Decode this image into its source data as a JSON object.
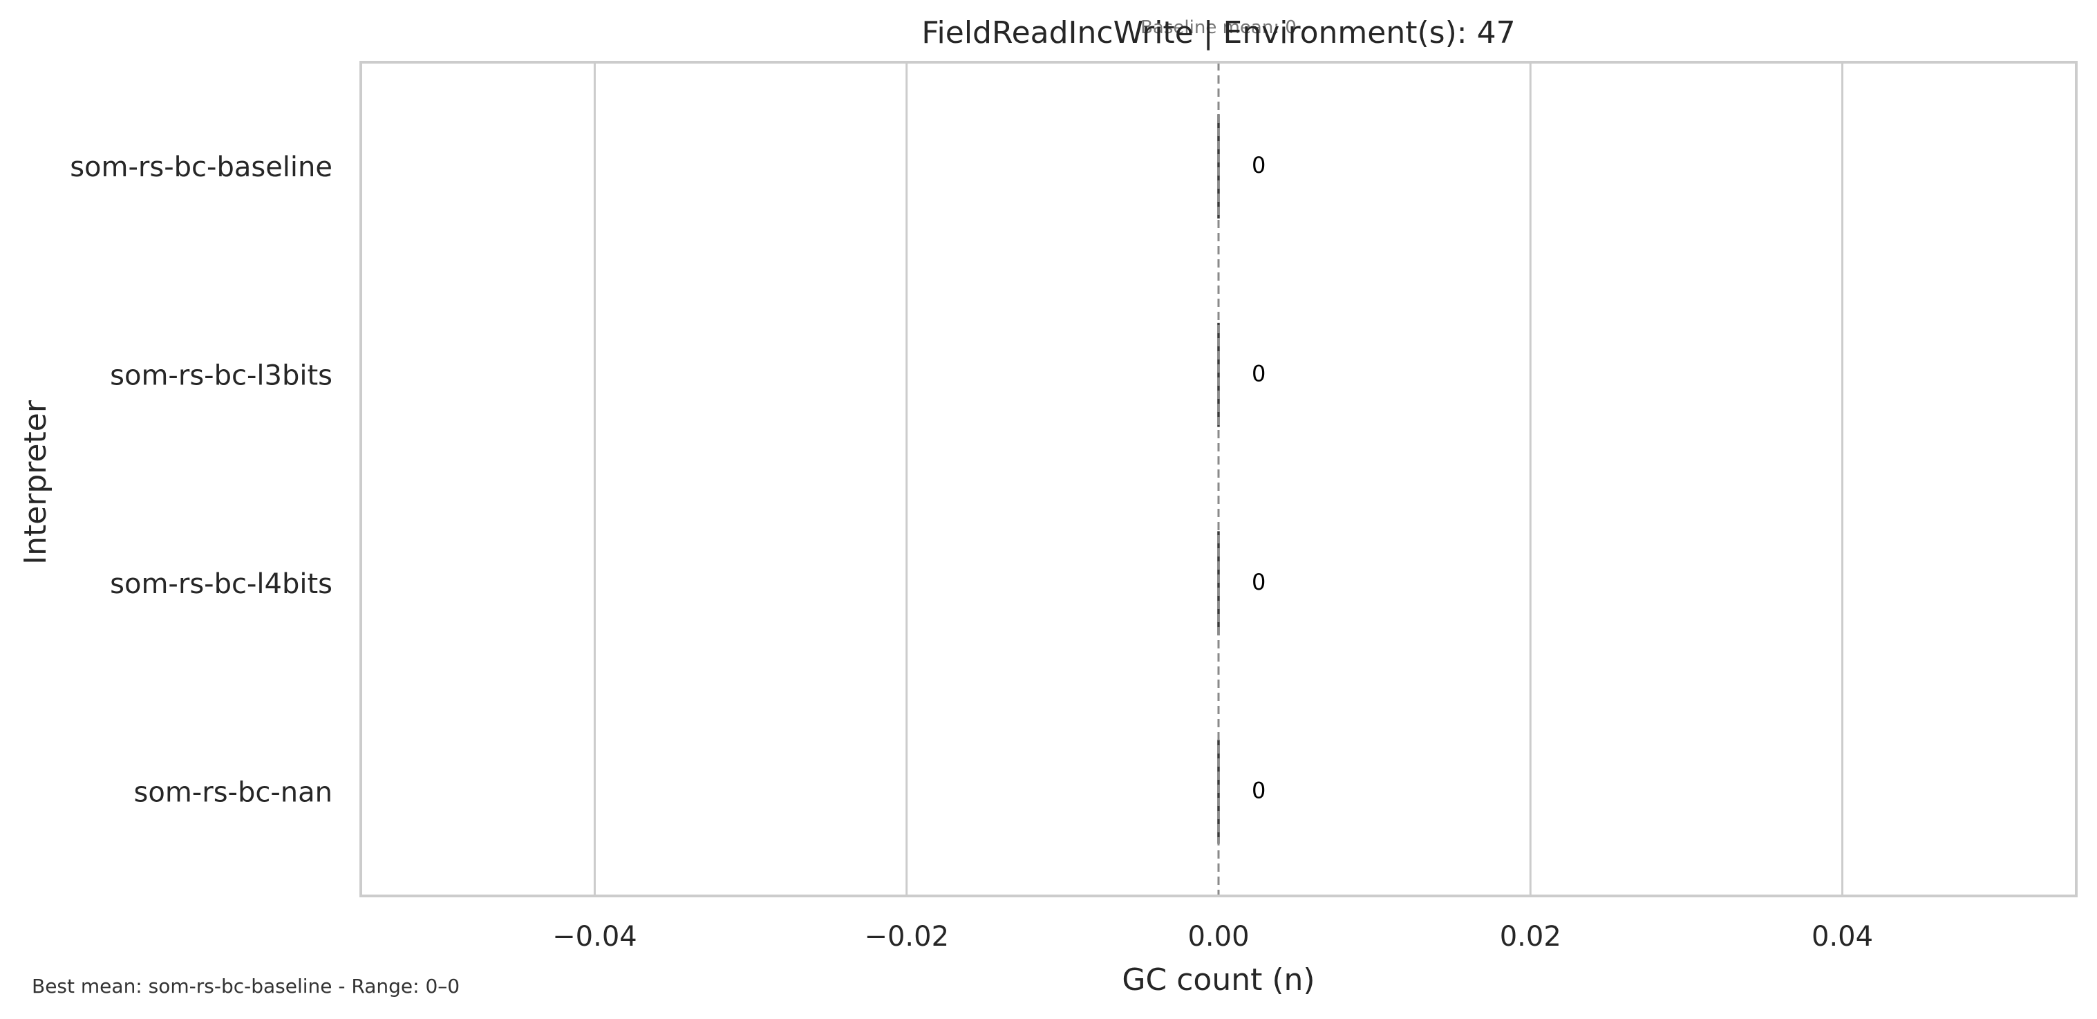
{
  "chart_data": {
    "type": "bar",
    "orientation": "horizontal",
    "title": "FieldReadIncWrite | Environment(s): 47",
    "baseline_label": "Baseline mean: 0",
    "xlabel": "GC count (n)",
    "ylabel": "Interpreter",
    "categories": [
      "som-rs-bc-baseline",
      "som-rs-bc-l3bits",
      "som-rs-bc-l4bits",
      "som-rs-bc-nan"
    ],
    "values": [
      0,
      0,
      0,
      0
    ],
    "value_labels": [
      "0",
      "0",
      "0",
      "0"
    ],
    "xlim": [
      -0.055,
      0.055
    ],
    "xticks": [
      -0.04,
      -0.02,
      0.0,
      0.02,
      0.04
    ],
    "xtick_labels": [
      "−0.04",
      "−0.02",
      "0.00",
      "0.02",
      "0.04"
    ],
    "baseline_value": 0,
    "grid": true,
    "footer_note": "Best mean: som-rs-bc-baseline - Range: 0–0"
  }
}
